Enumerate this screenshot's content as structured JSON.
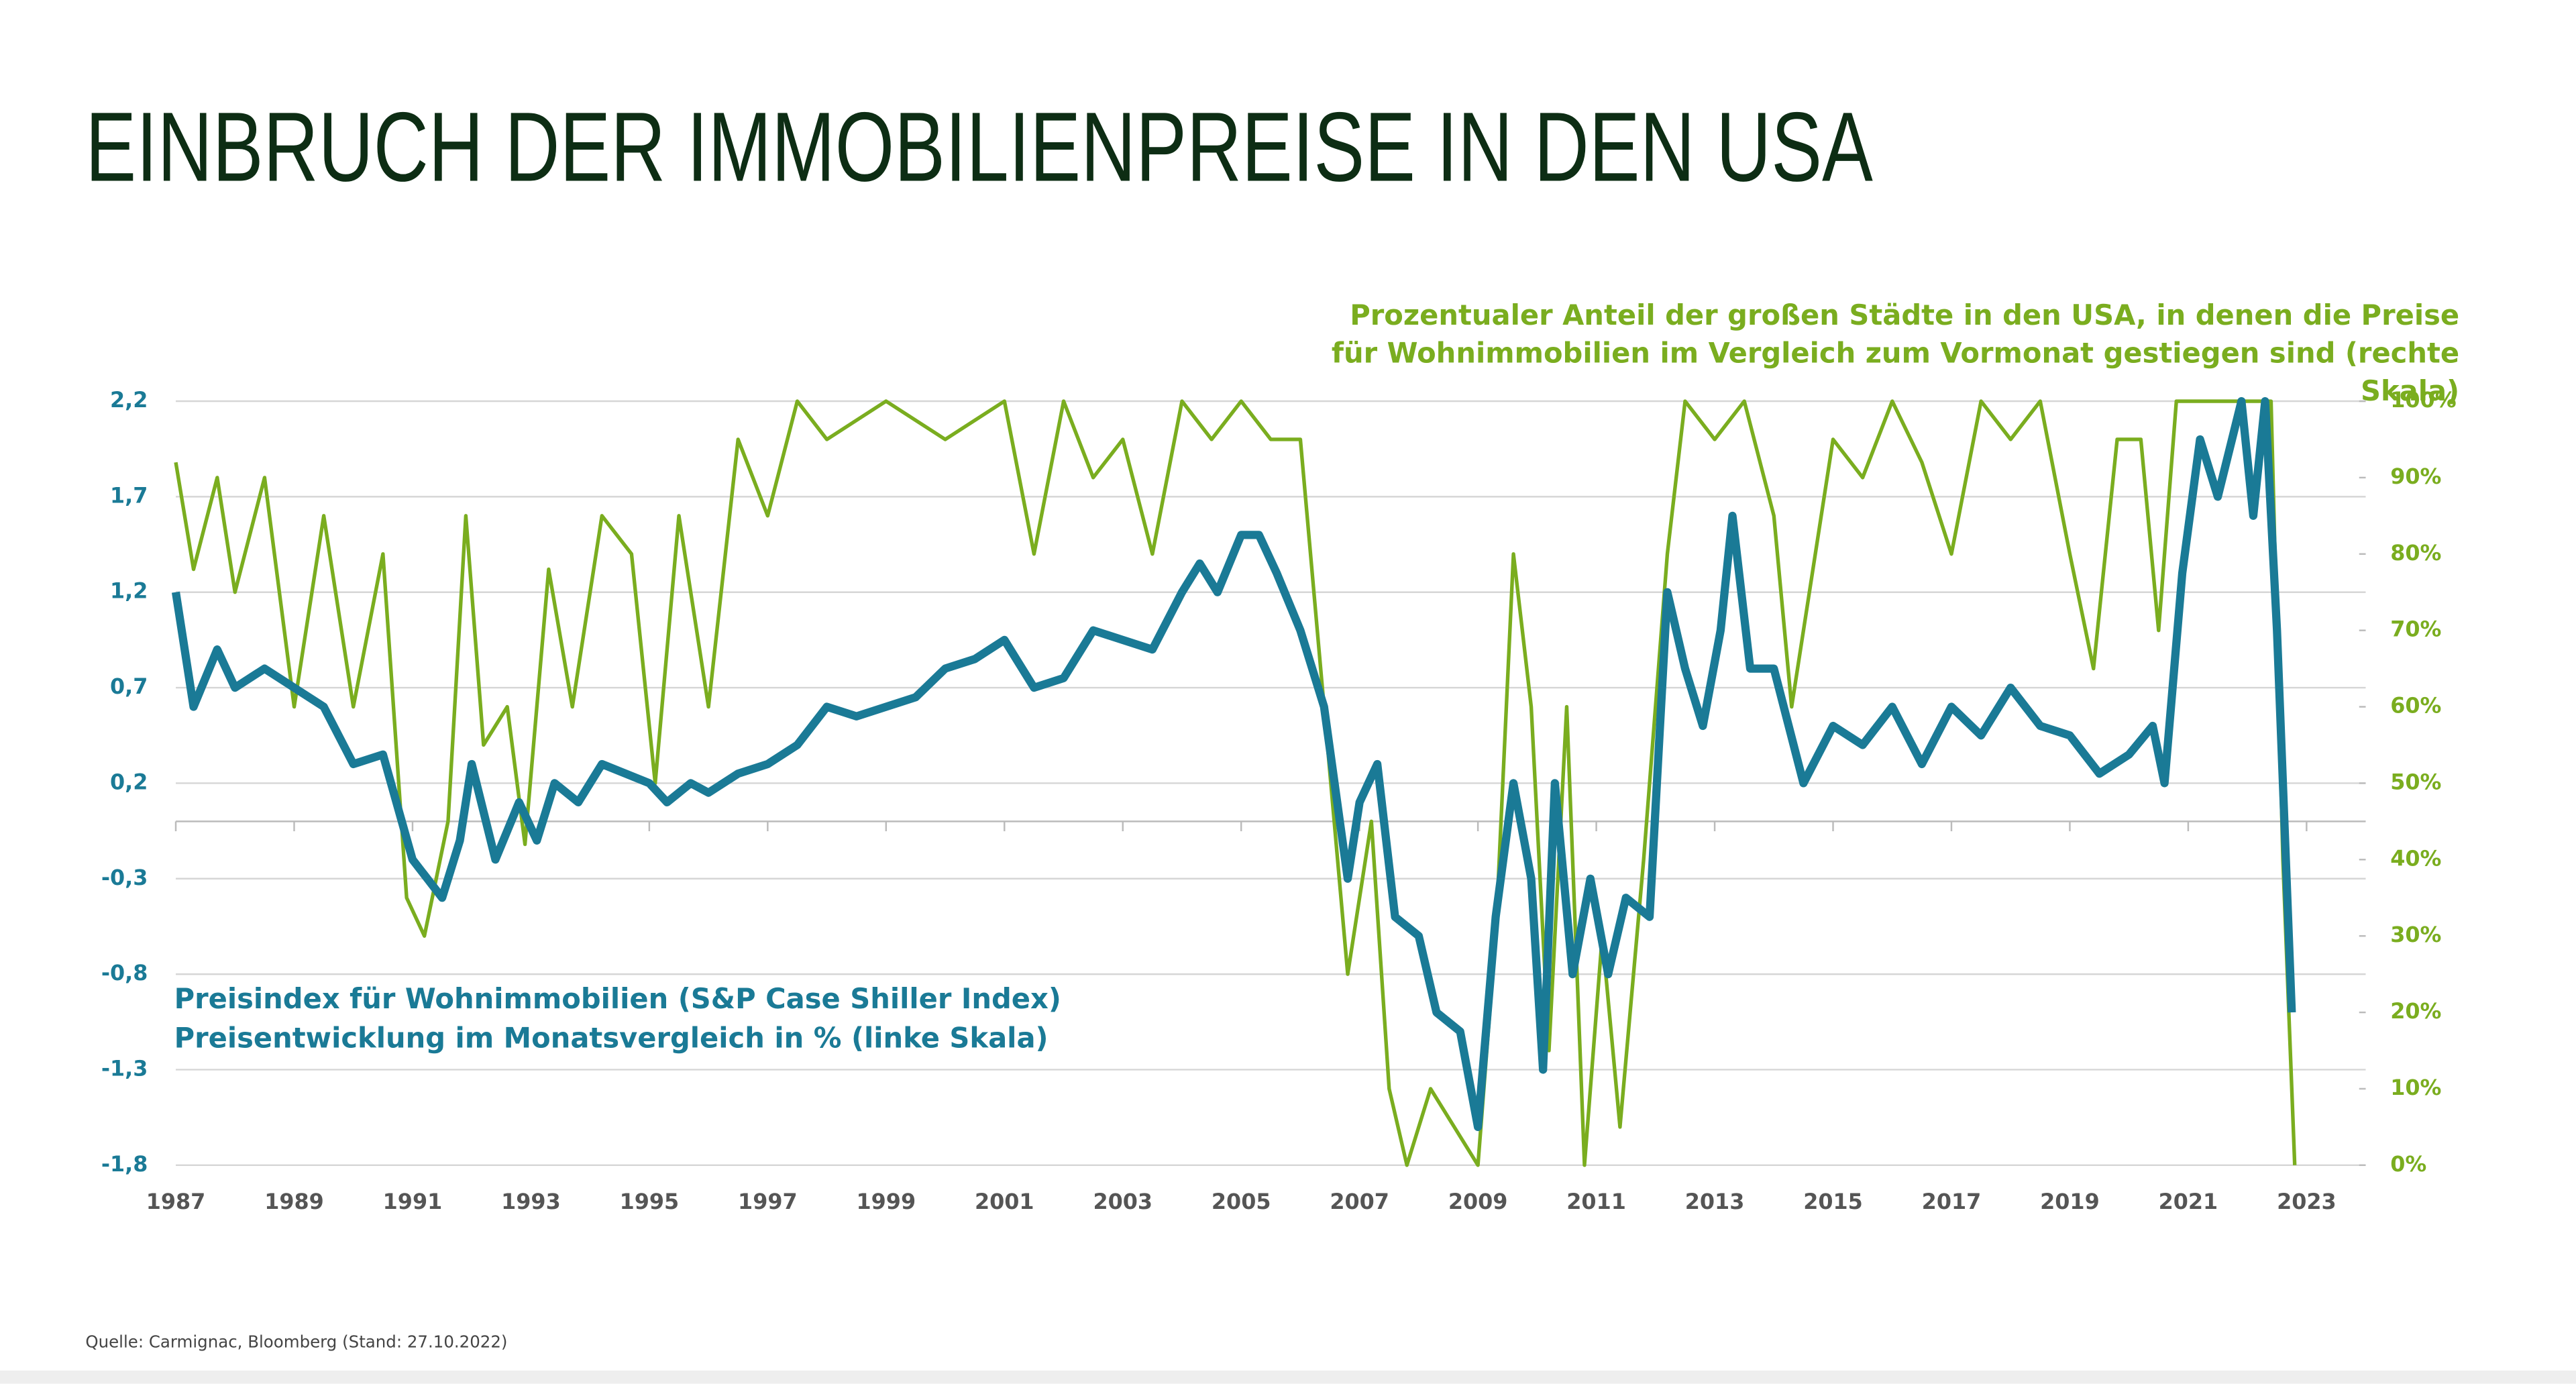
{
  "chart_data": {
    "type": "line",
    "title": "EINBRUCH DER IMMOBILIENPREISE IN DEN USA",
    "ylabel": [
      "Preisindex für Wohnimmobilien (S&P Case Shiller Index)",
      "Preisentwicklung im Monatsvergleich in % (linke Skala)"
    ],
    "y2label": [
      "Prozentualer Anteil der großen Städte in den USA, in denen die Preise",
      "für Wohnimmobilien im Vergleich zum Vormonat gestiegen sind (rechte",
      "Skala)"
    ],
    "source": "Quelle: Carmignac, Bloomberg (Stand: 27.10.2022)",
    "xlim": [
      1987,
      2023
    ],
    "xticks": [
      1987,
      1989,
      1991,
      1993,
      1995,
      1997,
      1999,
      2001,
      2003,
      2005,
      2007,
      2009,
      2011,
      2013,
      2015,
      2017,
      2019,
      2021,
      2023
    ],
    "ylim": [
      -1.8,
      2.2
    ],
    "yticks": [
      {
        "value": -1.8,
        "label": "-1,8"
      },
      {
        "value": -1.3,
        "label": "-1,3"
      },
      {
        "value": -0.8,
        "label": "-0,8"
      },
      {
        "value": -0.3,
        "label": "-0,3"
      },
      {
        "value": 0.2,
        "label": "0,2"
      },
      {
        "value": 0.7,
        "label": "0,7"
      },
      {
        "value": 1.2,
        "label": "1,2"
      },
      {
        "value": 1.7,
        "label": "1,7"
      },
      {
        "value": 2.2,
        "label": "2,2"
      }
    ],
    "y2lim": [
      0,
      100
    ],
    "y2ticks": [
      {
        "value": 0,
        "label": "0%"
      },
      {
        "value": 10,
        "label": "10%"
      },
      {
        "value": 20,
        "label": "20%"
      },
      {
        "value": 30,
        "label": "30%"
      },
      {
        "value": 40,
        "label": "40%"
      },
      {
        "value": 50,
        "label": "50%"
      },
      {
        "value": 60,
        "label": "60%"
      },
      {
        "value": 70,
        "label": "70%"
      },
      {
        "value": 80,
        "label": "80%"
      },
      {
        "value": 90,
        "label": "90%"
      },
      {
        "value": 100,
        "label": "100%"
      }
    ],
    "grid": true,
    "series": [
      {
        "color": "#7aad1f",
        "axis": "y2",
        "x": [
          1987,
          1987.3,
          1987.7,
          1988,
          1988.5,
          1989,
          1989.5,
          1990,
          1990.5,
          1990.9,
          1991.2,
          1991.6,
          1991.9,
          1992.2,
          1992.6,
          1992.9,
          1993.3,
          1993.7,
          1994.2,
          1994.7,
          1995.1,
          1995.5,
          1996,
          1996.5,
          1997,
          1997.5,
          1998,
          1999,
          2000,
          2001,
          2001.5,
          2002,
          2002.5,
          2003,
          2003.5,
          2004,
          2004.5,
          2005,
          2005.5,
          2006,
          2006.4,
          2006.8,
          2007.2,
          2007.5,
          2007.8,
          2008.2,
          2008.6,
          2009,
          2009.3,
          2009.6,
          2009.9,
          2010.2,
          2010.5,
          2010.8,
          2011.1,
          2011.4,
          2011.8,
          2012.2,
          2012.5,
          2013,
          2013.5,
          2014,
          2014.3,
          2015,
          2015.5,
          2016,
          2016.5,
          2017,
          2017.5,
          2018,
          2018.5,
          2019,
          2019.4,
          2019.8,
          2020.2,
          2020.5,
          2020.8,
          2021,
          2022,
          2022.4,
          2022.6,
          2022.8
        ],
        "values": [
          92,
          78,
          90,
          75,
          90,
          60,
          85,
          60,
          80,
          35,
          30,
          45,
          85,
          55,
          60,
          42,
          78,
          60,
          85,
          80,
          50,
          85,
          60,
          95,
          85,
          100,
          95,
          100,
          95,
          100,
          80,
          100,
          90,
          95,
          80,
          100,
          95,
          100,
          95,
          95,
          60,
          25,
          45,
          10,
          0,
          10,
          5,
          0,
          30,
          80,
          60,
          15,
          60,
          0,
          30,
          5,
          40,
          80,
          100,
          95,
          100,
          85,
          60,
          95,
          90,
          100,
          92,
          80,
          100,
          95,
          100,
          80,
          65,
          95,
          95,
          70,
          100,
          100,
          100,
          100,
          40,
          0
        ]
      },
      {
        "color": "#1a7a96",
        "axis": "y",
        "x": [
          1987,
          1987.3,
          1987.7,
          1988,
          1988.5,
          1989,
          1989.5,
          1990,
          1990.5,
          1991,
          1991.5,
          1991.8,
          1992,
          1992.4,
          1992.8,
          1993.1,
          1993.4,
          1993.8,
          1994.2,
          1994.6,
          1995,
          1995.3,
          1995.7,
          1996,
          1996.5,
          1997,
          1997.5,
          1998,
          1998.5,
          1999,
          1999.5,
          2000,
          2000.5,
          2001,
          2001.5,
          2002,
          2002.5,
          2003,
          2003.5,
          2004,
          2004.3,
          2004.6,
          2005,
          2005.3,
          2005.6,
          2006,
          2006.4,
          2006.8,
          2007,
          2007.3,
          2007.6,
          2008,
          2008.3,
          2008.7,
          2009,
          2009.3,
          2009.6,
          2009.9,
          2010.1,
          2010.3,
          2010.6,
          2010.9,
          2011.2,
          2011.5,
          2011.9,
          2012.2,
          2012.5,
          2012.8,
          2013.1,
          2013.3,
          2013.6,
          2014,
          2014.5,
          2015,
          2015.5,
          2016,
          2016.5,
          2017,
          2017.5,
          2018,
          2018.5,
          2019,
          2019.5,
          2020,
          2020.4,
          2020.6,
          2020.9,
          2021.2,
          2021.5,
          2021.9,
          2022.1,
          2022.3,
          2022.5,
          2022.75
        ],
        "values": [
          1.2,
          0.6,
          0.9,
          0.7,
          0.8,
          0.7,
          0.6,
          0.3,
          0.35,
          -0.2,
          -0.4,
          -0.1,
          0.3,
          -0.2,
          0.1,
          -0.1,
          0.2,
          0.1,
          0.3,
          0.25,
          0.2,
          0.1,
          0.2,
          0.15,
          0.25,
          0.3,
          0.4,
          0.6,
          0.55,
          0.6,
          0.65,
          0.8,
          0.85,
          0.95,
          0.7,
          0.75,
          1.0,
          0.95,
          0.9,
          1.2,
          1.35,
          1.2,
          1.5,
          1.5,
          1.3,
          1.0,
          0.6,
          -0.3,
          0.1,
          0.3,
          -0.5,
          -0.6,
          -1.0,
          -1.1,
          -1.6,
          -0.5,
          0.2,
          -0.3,
          -1.3,
          0.2,
          -0.8,
          -0.3,
          -0.8,
          -0.4,
          -0.5,
          1.2,
          0.8,
          0.5,
          1.0,
          1.6,
          0.8,
          0.8,
          0.2,
          0.5,
          0.4,
          0.6,
          0.3,
          0.6,
          0.45,
          0.7,
          0.5,
          0.45,
          0.25,
          0.35,
          0.5,
          0.2,
          1.3,
          2.0,
          1.7,
          2.2,
          1.6,
          2.2,
          1.0,
          -1.0
        ]
      }
    ]
  }
}
